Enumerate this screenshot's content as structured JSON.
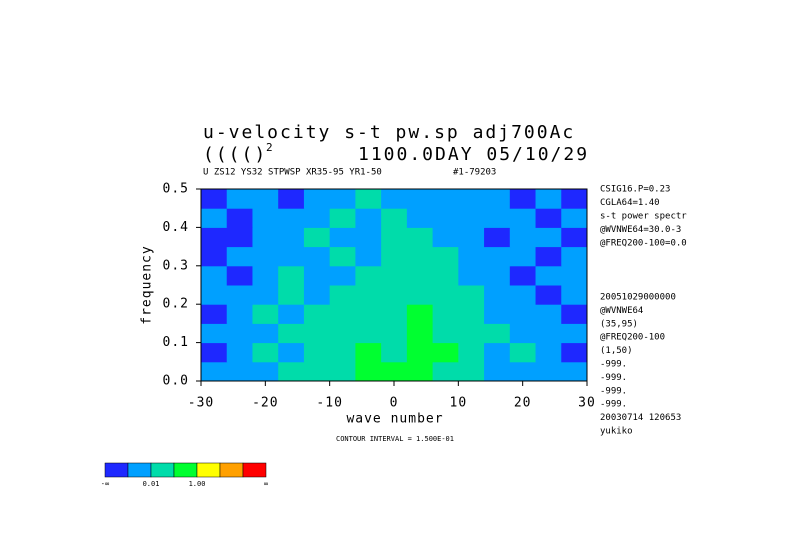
{
  "chart_data": {
    "type": "heatmap",
    "title": "u-velocity s-t pw.sp  adj700Ac",
    "title_line2": "(((()",
    "title_superscript": "2",
    "title_date": "1100.0DAY 05/10/29",
    "subtitle": "U ZS12 YS32 STPWSP XR35-95 YR1-50",
    "subtitle_id": "#1-79203",
    "xlabel": "wave number",
    "ylabel": "frequency",
    "xlim": [
      -30,
      30
    ],
    "ylim": [
      0,
      0.5
    ],
    "xticks": [
      -30,
      -20,
      -10,
      0,
      10,
      20,
      30
    ],
    "yticks": [
      {
        "value": 0,
        "label": "0.0"
      },
      0.1,
      0.2,
      0.3,
      0.4,
      0.5
    ],
    "x_edges": [
      -30,
      -26,
      -22,
      -18,
      -14,
      -10,
      -6,
      -2,
      2,
      6,
      10,
      14,
      18,
      22,
      26,
      30
    ],
    "y_edges": [
      0,
      0.05,
      0.1,
      0.15,
      0.2,
      0.25,
      0.3,
      0.35,
      0.4,
      0.45,
      0.5
    ],
    "z": [
      [
        1,
        1,
        1,
        2,
        2,
        2,
        3,
        3,
        3,
        2,
        2,
        1,
        1,
        1,
        1
      ],
      [
        0,
        1,
        2,
        1,
        2,
        2,
        3,
        2,
        3,
        3,
        2,
        1,
        2,
        1,
        0
      ],
      [
        1,
        1,
        1,
        2,
        2,
        2,
        2,
        2,
        3,
        2,
        2,
        2,
        1,
        1,
        1
      ],
      [
        0,
        1,
        2,
        1,
        2,
        2,
        2,
        2,
        3,
        2,
        2,
        1,
        1,
        1,
        0
      ],
      [
        1,
        1,
        1,
        2,
        1,
        2,
        2,
        2,
        2,
        2,
        2,
        1,
        1,
        0,
        1
      ],
      [
        1,
        0,
        1,
        2,
        1,
        1,
        2,
        2,
        2,
        2,
        1,
        1,
        0,
        1,
        1
      ],
      [
        0,
        1,
        1,
        1,
        1,
        2,
        1,
        2,
        2,
        2,
        1,
        1,
        1,
        0,
        1
      ],
      [
        0,
        0,
        1,
        1,
        2,
        1,
        1,
        2,
        2,
        1,
        1,
        0,
        1,
        1,
        0
      ],
      [
        1,
        0,
        1,
        1,
        1,
        2,
        1,
        2,
        1,
        1,
        1,
        1,
        1,
        0,
        1
      ],
      [
        0,
        1,
        1,
        0,
        1,
        1,
        2,
        1,
        1,
        1,
        1,
        1,
        0,
        1,
        0
      ]
    ],
    "colorbar": {
      "colors": [
        "#1e28ff",
        "#00a0ff",
        "#00dcaa",
        "#00ff30",
        "#ffff00",
        "#ffa000",
        "#ff0000"
      ],
      "labels": [
        "-∞",
        null,
        "0.01",
        null,
        "1.00",
        null,
        null,
        "∞"
      ]
    },
    "side_text_top": [
      "CSIG16.P=0.23",
      "CGLA64=1.40",
      "s-t power spectr",
      "@WVNWE64=30.0-3",
      "@FREQ200-100=0.0"
    ],
    "side_text_bottom": [
      "20051029000000",
      "@WVNWE64",
      "(35,95)",
      "@FREQ200-100",
      "(1,50)",
      "-999.",
      "-999.",
      "-999.",
      "-999.",
      "20030714 120653",
      "yukiko"
    ],
    "footnote": "CONTOUR INTERVAL = 1.500E-01"
  }
}
